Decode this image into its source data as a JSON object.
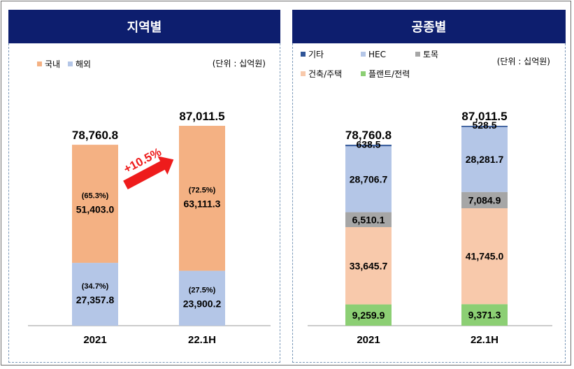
{
  "panels": {
    "left_title": "지역별",
    "right_title": "공종별"
  },
  "chart_data": [
    {
      "type": "bar",
      "stacked": true,
      "title": "지역별",
      "unit": "(단위 : 십억원)",
      "categories": [
        "2021",
        "22.1H"
      ],
      "totals": [
        "78,760.8",
        "87,011.5"
      ],
      "series": [
        {
          "name": "해외",
          "color": "#b4c6e7",
          "values": [
            27357.8,
            23900.2
          ],
          "labels": [
            "27,357.8",
            "23,900.2"
          ],
          "pct": [
            "(34.7%)",
            "(27.5%)"
          ]
        },
        {
          "name": "국내",
          "color": "#f4b183",
          "values": [
            51403.0,
            63111.3
          ],
          "labels": [
            "51,403.0",
            "63,111.3"
          ],
          "pct": [
            "(65.3%)",
            "(72.5%)"
          ]
        }
      ],
      "legend_order": [
        "국내",
        "해외"
      ],
      "legend_colors": [
        "#f4b183",
        "#b4c6e7"
      ],
      "growth_label": "+10.5%",
      "growth_color": "#ee1c1c",
      "ylim": [
        0,
        110000
      ]
    },
    {
      "type": "bar",
      "stacked": true,
      "title": "공종별",
      "unit": "(단위 : 십억원)",
      "categories": [
        "2021",
        "22.1H"
      ],
      "totals": [
        "78,760.8",
        "87,011.5"
      ],
      "series": [
        {
          "name": "플랜트/전력",
          "color": "#8ccf74",
          "values": [
            9259.9,
            9371.3
          ],
          "labels": [
            "9,259.9",
            "9,371.3"
          ]
        },
        {
          "name": "건축/주택",
          "color": "#f8c9ab",
          "values": [
            33645.7,
            41745.0
          ],
          "labels": [
            "33,645.7",
            "41,745.0"
          ]
        },
        {
          "name": "토목",
          "color": "#a6a6a6",
          "values": [
            6510.1,
            7084.9
          ],
          "labels": [
            "6,510.1",
            "7,084.9"
          ]
        },
        {
          "name": "HEC",
          "color": "#b4c6e7",
          "values": [
            28706.7,
            28281.7
          ],
          "labels": [
            "28,706.7",
            "28,281.7"
          ]
        },
        {
          "name": "기타",
          "color": "#2f5597",
          "values": [
            638.5,
            528.5
          ],
          "labels": [
            "638.5",
            "528.5"
          ]
        }
      ],
      "legend_order": [
        "기타",
        "HEC",
        "토목",
        "건축/주택",
        "플랜트/전력"
      ],
      "legend_colors": [
        "#2f5597",
        "#b4c6e7",
        "#a6a6a6",
        "#f8c9ab",
        "#8ccf74"
      ],
      "ylim": [
        0,
        110000
      ]
    }
  ]
}
